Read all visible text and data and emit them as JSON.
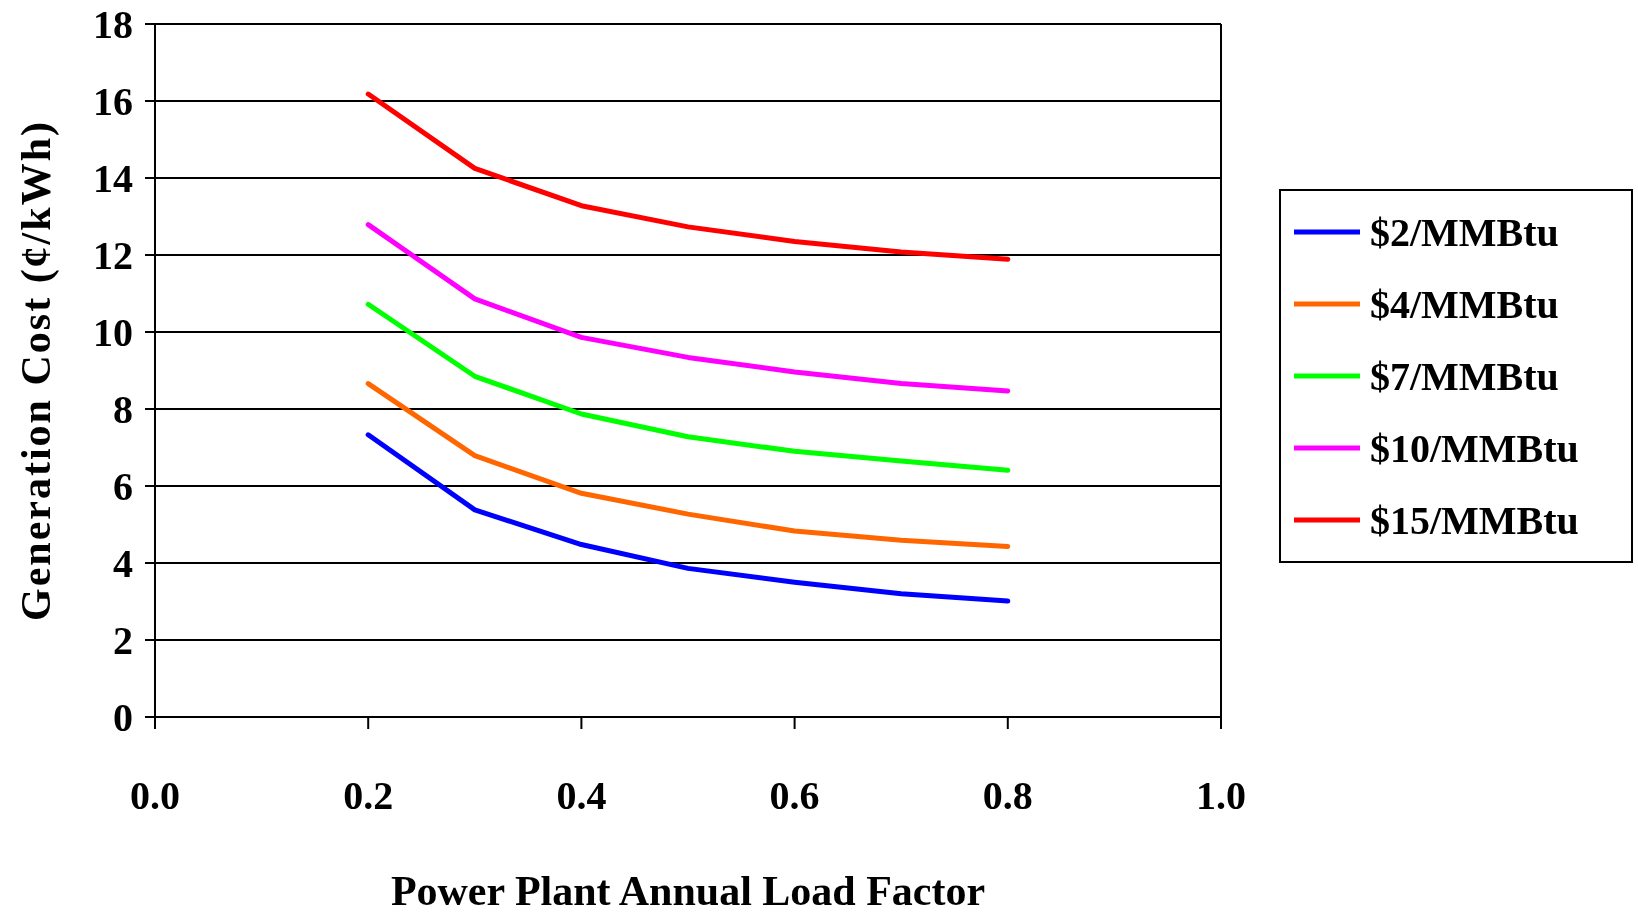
{
  "chart_data": {
    "type": "line",
    "xlabel": "Power Plant Annual Load Factor",
    "ylabel": "Generation Cost (¢/kWh)",
    "xlim": [
      0,
      1
    ],
    "xticks": [
      {
        "value": 0,
        "label": "0.0"
      },
      {
        "value": 0.2,
        "label": "0.2"
      },
      {
        "value": 0.4,
        "label": "0.4"
      },
      {
        "value": 0.6,
        "label": "0.6"
      },
      {
        "value": 0.8,
        "label": "0.8"
      },
      {
        "value": 1,
        "label": "1.0"
      }
    ],
    "ylim": [
      0,
      18
    ],
    "yticks": [
      0,
      2,
      4,
      6,
      8,
      10,
      12,
      14,
      16,
      18
    ],
    "grid": "y",
    "legend": "right",
    "marker": "none",
    "line_style": "solid",
    "x": [
      0.2,
      0.3,
      0.4,
      0.5,
      0.6,
      0.7,
      0.8
    ],
    "series": [
      {
        "name": "$2/MMBtu",
        "color": "#0000ff",
        "values": [
          7.33,
          5.38,
          4.48,
          3.86,
          3.5,
          3.2,
          3.01
        ]
      },
      {
        "name": "$4/MMBtu",
        "color": "#ff6600",
        "values": [
          8.66,
          6.79,
          5.81,
          5.27,
          4.83,
          4.59,
          4.43
        ]
      },
      {
        "name": "$7/MMBtu",
        "color": "#00ff00",
        "values": [
          10.72,
          8.85,
          7.87,
          7.28,
          6.9,
          6.65,
          6.41
        ]
      },
      {
        "name": "$10/MMBtu",
        "color": "#ff00ff",
        "values": [
          12.79,
          10.86,
          9.86,
          9.34,
          8.96,
          8.66,
          8.47
        ]
      },
      {
        "name": "$15/MMBtu",
        "color": "#ff0000",
        "values": [
          16.18,
          14.25,
          13.28,
          12.73,
          12.35,
          12.08,
          11.89
        ]
      }
    ]
  }
}
